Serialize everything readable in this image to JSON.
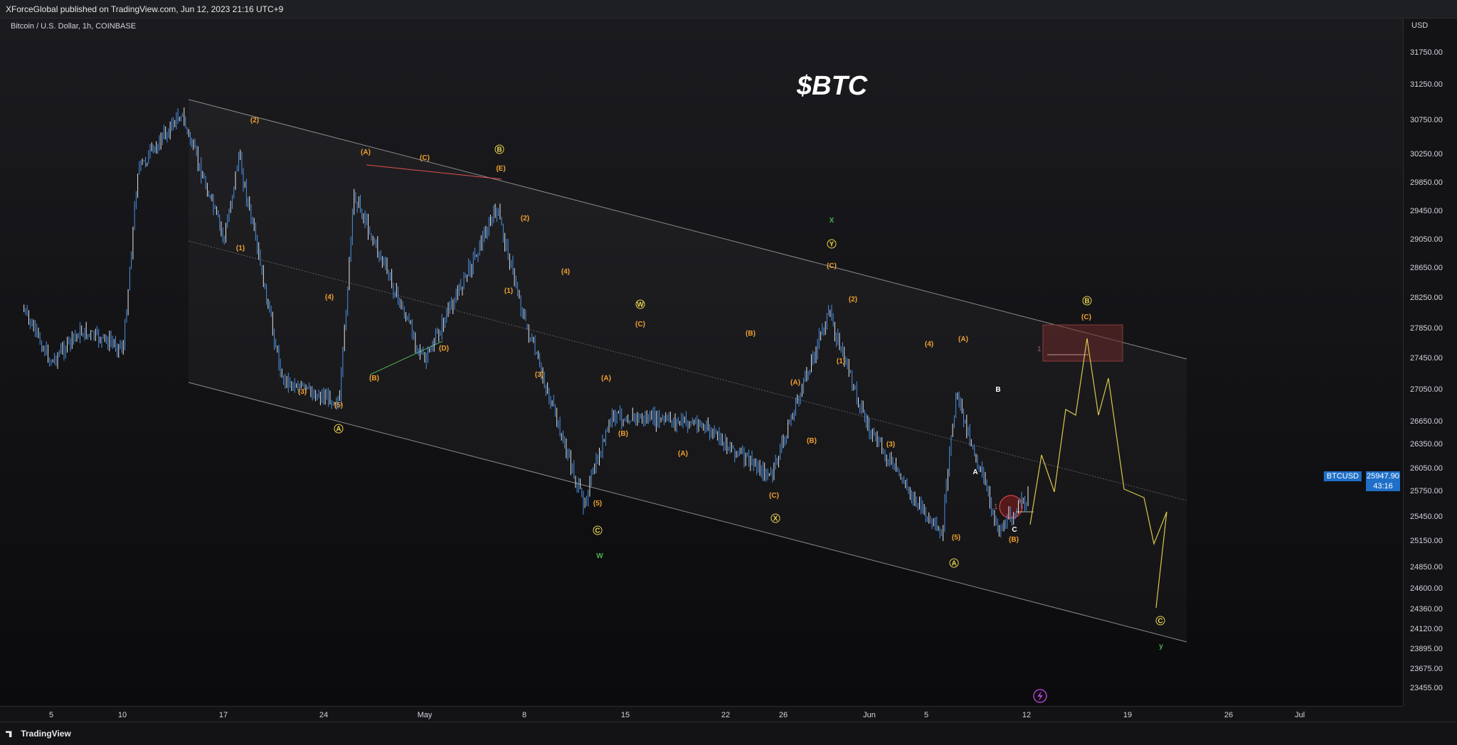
{
  "header": {
    "published": "XForceGlobal published on TradingView.com, Jun 12, 2023 21:16 UTC+9"
  },
  "symbol": {
    "description": "Bitcoin / U.S. Dollar, 1h, COINBASE",
    "ticker": "BTCUSD",
    "last_price": "25947.90",
    "countdown": "43:16"
  },
  "title": "$BTC",
  "price_axis": {
    "currency": "USD",
    "ticks": [
      "31750.00",
      "31250.00",
      "30750.00",
      "30250.00",
      "29850.00",
      "29450.00",
      "29050.00",
      "28650.00",
      "28250.00",
      "27850.00",
      "27450.00",
      "27050.00",
      "26650.00",
      "26350.00",
      "26050.00",
      "25750.00",
      "25450.00",
      "25150.00",
      "24850.00",
      "24600.00",
      "24360.00",
      "24120.00",
      "23895.00",
      "23675.00",
      "23455.00"
    ]
  },
  "time_axis": {
    "ticks": [
      "5",
      "10",
      "17",
      "24",
      "May",
      "8",
      "15",
      "22",
      "26",
      "Jun",
      "5",
      "12",
      "19",
      "26",
      "Jul"
    ]
  },
  "footer": {
    "brand": "TradingView"
  },
  "colors": {
    "candle": "#4a90e2",
    "candle_light": "#e6e6e6",
    "wave_orange": "#f0a030",
    "wave_yellow": "#e8d44d",
    "wave_green": "#4caf50",
    "channel": "#8a8a8a",
    "projection": "#d8c84a",
    "zone": "#6b2a2a"
  },
  "chart_data": {
    "type": "candlestick",
    "title": "$BTC",
    "symbol": "BTCUSD",
    "interval": "1h",
    "exchange": "COINBASE",
    "ylim": [
      23300,
      32000
    ],
    "x_ticks": [
      "5",
      "10",
      "17",
      "24",
      "May",
      "8",
      "15",
      "22",
      "26",
      "Jun",
      "5",
      "12",
      "19",
      "26",
      "Jul"
    ],
    "approx_path": [
      {
        "x": "Apr 3",
        "y": 28400
      },
      {
        "x": "Apr 5",
        "y": 27700
      },
      {
        "x": "Apr 7",
        "y": 28100
      },
      {
        "x": "Apr 10",
        "y": 27900
      },
      {
        "x": "Apr 11",
        "y": 30200
      },
      {
        "x": "Apr 14",
        "y": 30950
      },
      {
        "x": "Apr 17",
        "y": 29300
      },
      {
        "x": "Apr 18",
        "y": 30400
      },
      {
        "x": "Apr 21",
        "y": 27500
      },
      {
        "x": "Apr 23",
        "y": 27300
      },
      {
        "x": "Apr 25",
        "y": 27200
      },
      {
        "x": "Apr 26",
        "y": 29900
      },
      {
        "x": "May 1",
        "y": 27700
      },
      {
        "x": "May 6",
        "y": 29700
      },
      {
        "x": "May 8",
        "y": 28200
      },
      {
        "x": "May 12",
        "y": 25850
      },
      {
        "x": "May 14",
        "y": 27000
      },
      {
        "x": "May 20",
        "y": 26900
      },
      {
        "x": "May 25",
        "y": 26200
      },
      {
        "x": "May 29",
        "y": 28350
      },
      {
        "x": "Jun 1",
        "y": 26800
      },
      {
        "x": "Jun 6",
        "y": 25400
      },
      {
        "x": "Jun 7",
        "y": 27300
      },
      {
        "x": "Jun 10",
        "y": 25500
      },
      {
        "x": "Jun 12",
        "y": 25947.9
      }
    ],
    "projection": [
      {
        "x": "Jun 12",
        "y": 25900
      },
      {
        "x": "Jun 14",
        "y": 27100
      },
      {
        "x": "Jun 16",
        "y": 27650
      },
      {
        "x": "Jun 18",
        "y": 26700
      },
      {
        "x": "Jun 20",
        "y": 25250
      },
      {
        "x": "Jun 22",
        "y": 24450
      }
    ],
    "wave_labels": {
      "orange": [
        "(1)",
        "(2)",
        "(3)",
        "(4)",
        "(5)",
        "(A)",
        "(B)",
        "(C)",
        "(D)",
        "(E)"
      ],
      "circled": [
        "A",
        "B",
        "C",
        "W",
        "X",
        "Y"
      ],
      "green": [
        "W",
        "X",
        "y"
      ],
      "white": [
        "A",
        "B",
        "C"
      ]
    }
  }
}
